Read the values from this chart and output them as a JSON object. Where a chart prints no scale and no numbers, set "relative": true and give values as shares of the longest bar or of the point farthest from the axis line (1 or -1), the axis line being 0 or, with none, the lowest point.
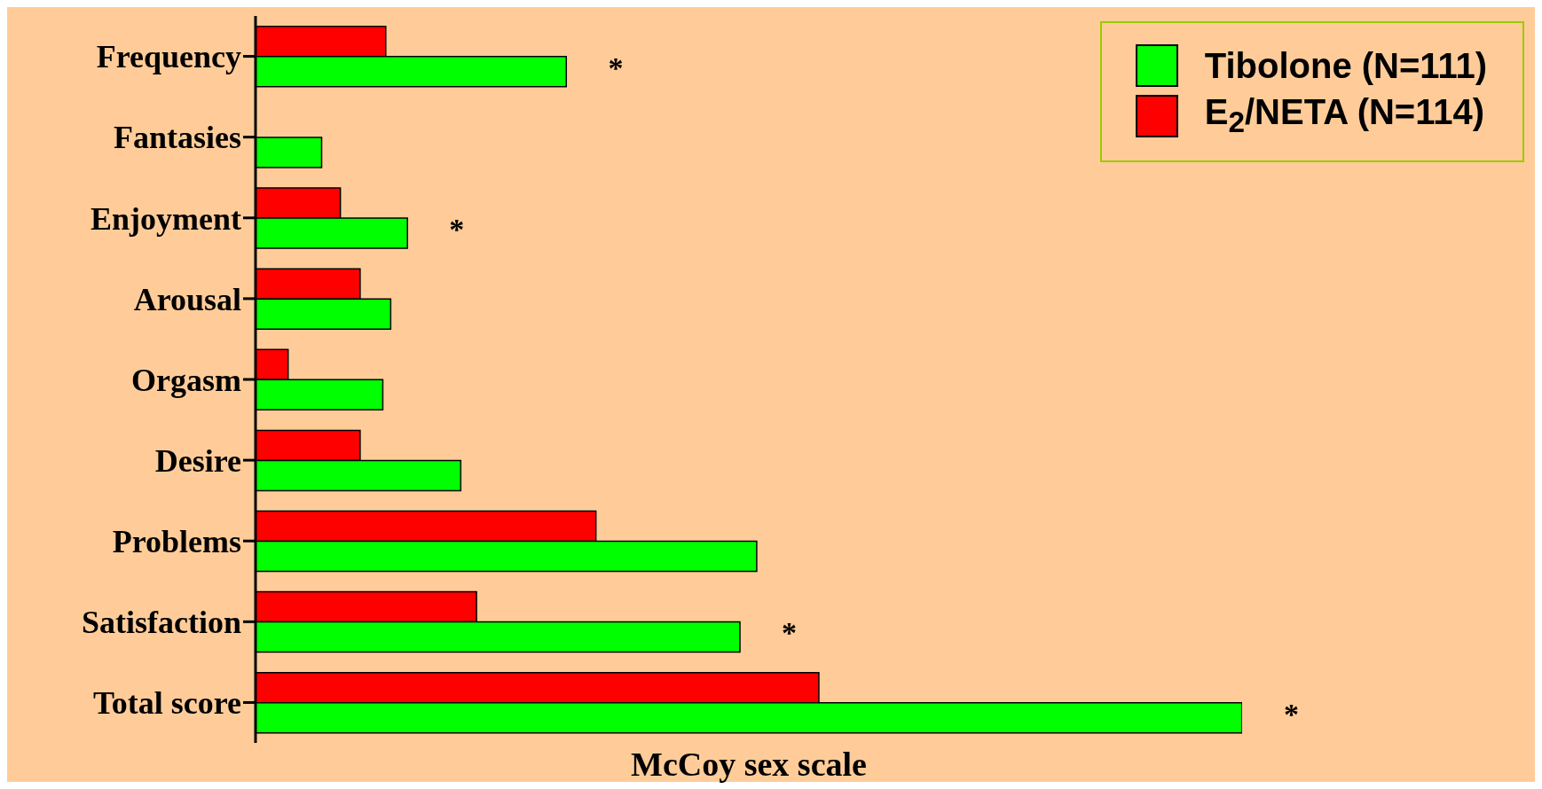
{
  "chart_data": {
    "type": "bar",
    "orientation": "horizontal",
    "relative": true,
    "xlabel": "McCoy sex scale",
    "categories": [
      "Frequency",
      "Fantasies",
      "Enjoyment",
      "Arousal",
      "Orgasm",
      "Desire",
      "Problems",
      "Satisfaction",
      "Total score"
    ],
    "series": [
      {
        "name": "Tibolone (N=111)",
        "color": "#00ff00",
        "values": [
          0.315,
          0.067,
          0.154,
          0.137,
          0.129,
          0.208,
          0.508,
          0.491,
          1
        ]
      },
      {
        "name": "E$_{2}$/NETA (N=114)",
        "color": "#ff0000",
        "values": [
          0.132,
          null,
          0.086,
          0.106,
          0.033,
          0.106,
          0.345,
          0.224,
          0.571
        ]
      }
    ],
    "annotations": [
      {
        "text": "*",
        "x": 0.315,
        "y": "Frequency"
      },
      {
        "text": "*",
        "x": 0.154,
        "y": "Enjoyment"
      },
      {
        "text": "*",
        "x": 0.491,
        "y": "Satisfaction"
      },
      {
        "text": "*",
        "x": 1,
        "y": "Total score"
      }
    ],
    "legend": "top right",
    "grid": false
  }
}
